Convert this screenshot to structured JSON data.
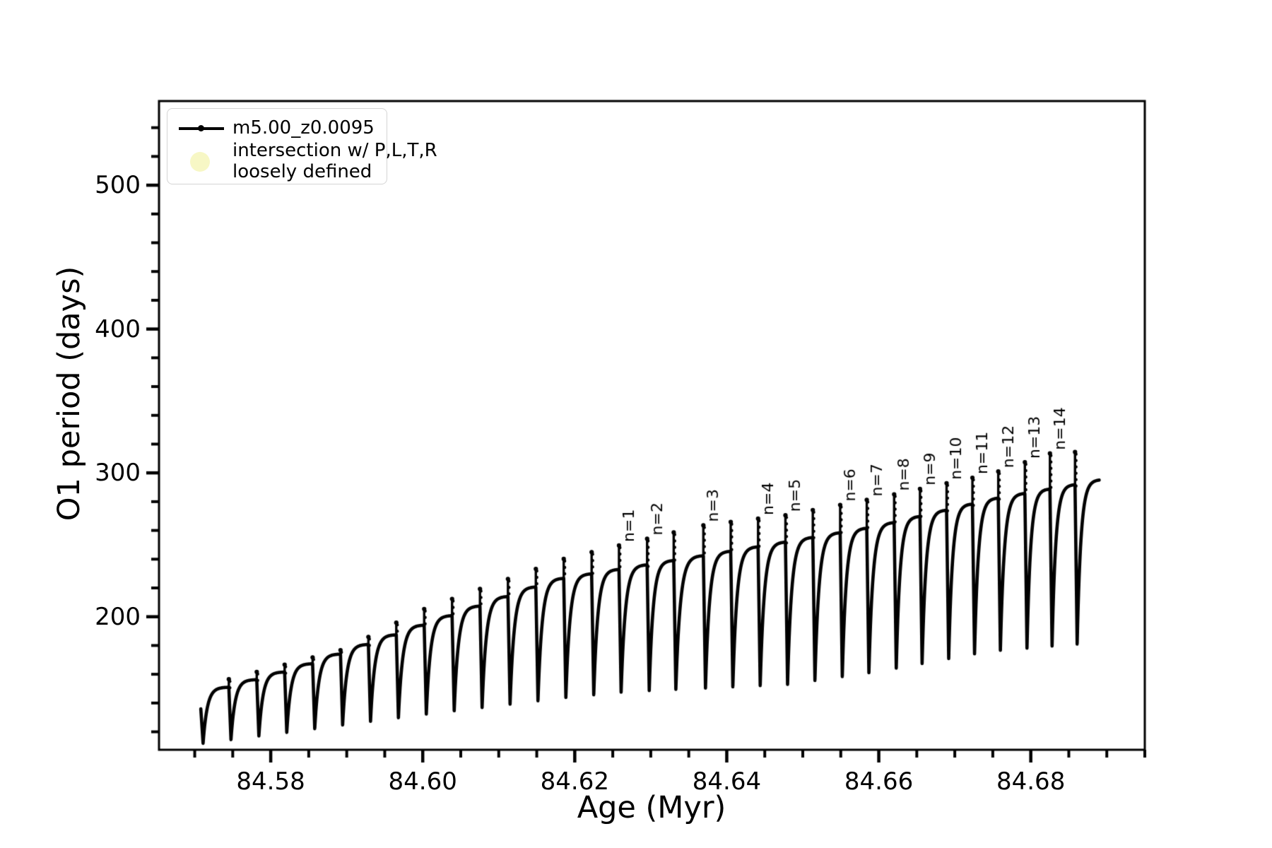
{
  "legend": {
    "series_label": "m5.00_z0.0095",
    "scatter_label_line1": "intersection w/ P,L,T,R",
    "scatter_label_line2": "loosely defined",
    "scatter_marker_color": "#f7f7c5",
    "line_color": "#000000"
  },
  "chart_data": {
    "type": "line",
    "title": "",
    "xlabel": "Age (Myr)",
    "ylabel": "O1 period (days)",
    "series": [
      {
        "name": "m5.00_z0.0095",
        "color": "#000000"
      }
    ],
    "xlim": [
      84.5653,
      84.695
    ],
    "ylim": [
      107.5,
      558.5
    ],
    "x_major_ticks": [
      84.58,
      84.6,
      84.62,
      84.64,
      84.66,
      84.68
    ],
    "x_major_labels": [
      "84.58",
      "84.60",
      "84.62",
      "84.64",
      "84.66",
      "84.68"
    ],
    "x_minor_step": 0.005,
    "y_major_ticks": [
      200,
      300,
      400,
      500
    ],
    "y_major_labels": [
      "200",
      "300",
      "400",
      "500"
    ],
    "y_minor_step": 20,
    "grid": false,
    "legend_position": "upper left",
    "sawtooth": {
      "comment": "oscillating O1 period: rounded rising teeth ending in an upward spike then a sharp needle drop; envelopes are [age_Myr, period_days] control points",
      "start": {
        "age": 84.5708,
        "days": 136
      },
      "end": {
        "age": 84.689,
        "days": 295
      },
      "needle_ages": [
        84.5711,
        84.57477,
        84.57844,
        84.58211,
        84.58579,
        84.58946,
        84.59313,
        84.5968,
        84.60047,
        84.60414,
        84.60781,
        84.61149,
        84.61516,
        84.61883,
        84.6225,
        84.6261,
        84.6298,
        84.6333,
        84.6372,
        84.6408,
        84.6444,
        84.648,
        84.6516,
        84.6552,
        84.6587,
        84.6623,
        84.6657,
        84.6692,
        84.6726,
        84.676,
        84.6795,
        84.6828,
        84.6861
      ],
      "needle_env": [
        [
          84.5711,
          112
        ],
        [
          84.6,
          132
        ],
        [
          84.619,
          144
        ],
        [
          84.627,
          148
        ],
        [
          84.648,
          153
        ],
        [
          84.66,
          162
        ],
        [
          84.6745,
          176
        ],
        [
          84.6861,
          181
        ]
      ],
      "hump_env": [
        [
          84.5723,
          148
        ],
        [
          84.5841,
          165
        ],
        [
          84.6,
          194
        ],
        [
          84.6177,
          226
        ],
        [
          84.6434,
          248
        ],
        [
          84.66,
          263
        ],
        [
          84.6752,
          282
        ],
        [
          84.686,
          292
        ],
        [
          84.689,
          295
        ]
      ],
      "spike_env": [
        [
          84.5711,
          152
        ],
        [
          84.59,
          178
        ],
        [
          84.6,
          205
        ],
        [
          84.619,
          241
        ],
        [
          84.6261,
          250
        ],
        [
          84.6372,
          264
        ],
        [
          84.648,
          271
        ],
        [
          84.66,
          283
        ],
        [
          84.6752,
          300
        ],
        [
          84.6828,
          314
        ],
        [
          84.6861,
          315
        ]
      ]
    },
    "annotations": [
      {
        "label": "n=1",
        "needle": 15
      },
      {
        "label": "n=2",
        "needle": 16
      },
      {
        "label": "n=3",
        "needle": 18
      },
      {
        "label": "n=4",
        "needle": 20
      },
      {
        "label": "n=5",
        "needle": 21
      },
      {
        "label": "n=6",
        "needle": 23
      },
      {
        "label": "n=7",
        "needle": 24
      },
      {
        "label": "n=8",
        "needle": 25
      },
      {
        "label": "n=9",
        "needle": 26
      },
      {
        "label": "n=10",
        "needle": 27
      },
      {
        "label": "n=11",
        "needle": 28
      },
      {
        "label": "n=12",
        "needle": 29
      },
      {
        "label": "n=13",
        "needle": 30
      },
      {
        "label": "n=14",
        "needle": 31
      }
    ]
  }
}
